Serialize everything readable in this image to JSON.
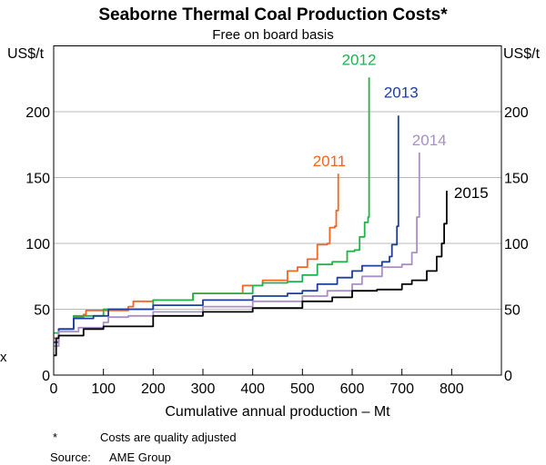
{
  "chart_data": {
    "type": "line",
    "title": "Seaborne Thermal Coal Production Costs*",
    "subtitle": "Free on board basis",
    "xlabel": "Cumulative annual production – Mt",
    "ylabel_left": "US$/t",
    "ylabel_right": "US$/t",
    "axis_break_mark": "x",
    "xlim": [
      0,
      900
    ],
    "ylim": [
      0,
      250
    ],
    "xticks": [
      0,
      100,
      200,
      300,
      400,
      500,
      600,
      700,
      800
    ],
    "yticks": [
      0,
      50,
      100,
      150,
      200
    ],
    "grid": true,
    "series": [
      {
        "name": "2011",
        "color": "#f26522",
        "points": [
          [
            0,
            28
          ],
          [
            10,
            35
          ],
          [
            40,
            44
          ],
          [
            60,
            46
          ],
          [
            65,
            49
          ],
          [
            100,
            49
          ],
          [
            150,
            52
          ],
          [
            160,
            56
          ],
          [
            200,
            57
          ],
          [
            280,
            62
          ],
          [
            380,
            68
          ],
          [
            420,
            72
          ],
          [
            470,
            79
          ],
          [
            490,
            82
          ],
          [
            510,
            88
          ],
          [
            530,
            99
          ],
          [
            550,
            100
          ],
          [
            555,
            112
          ],
          [
            565,
            113
          ],
          [
            568,
            125
          ],
          [
            572,
            153
          ]
        ]
      },
      {
        "name": "2012",
        "color": "#22b24c",
        "points": [
          [
            0,
            32
          ],
          [
            10,
            35
          ],
          [
            40,
            45
          ],
          [
            80,
            45
          ],
          [
            100,
            50
          ],
          [
            200,
            57
          ],
          [
            280,
            62
          ],
          [
            400,
            68
          ],
          [
            420,
            70
          ],
          [
            470,
            71
          ],
          [
            500,
            76
          ],
          [
            530,
            84
          ],
          [
            560,
            86
          ],
          [
            590,
            94
          ],
          [
            605,
            95
          ],
          [
            615,
            105
          ],
          [
            625,
            116
          ],
          [
            632,
            120
          ],
          [
            634,
            226
          ]
        ]
      },
      {
        "name": "2013",
        "color": "#1f3e9c",
        "points": [
          [
            0,
            25
          ],
          [
            10,
            35
          ],
          [
            40,
            43
          ],
          [
            80,
            45
          ],
          [
            110,
            50
          ],
          [
            200,
            53
          ],
          [
            300,
            57
          ],
          [
            400,
            60
          ],
          [
            470,
            62
          ],
          [
            500,
            64
          ],
          [
            530,
            69
          ],
          [
            570,
            74
          ],
          [
            600,
            79
          ],
          [
            620,
            83
          ],
          [
            660,
            86
          ],
          [
            675,
            90
          ],
          [
            680,
            99
          ],
          [
            690,
            113
          ],
          [
            693,
            197
          ]
        ]
      },
      {
        "name": "2014",
        "color": "#a98fc5",
        "points": [
          [
            0,
            22
          ],
          [
            10,
            33
          ],
          [
            50,
            36
          ],
          [
            100,
            40
          ],
          [
            110,
            44
          ],
          [
            150,
            45
          ],
          [
            200,
            48
          ],
          [
            300,
            52
          ],
          [
            400,
            56
          ],
          [
            500,
            60
          ],
          [
            550,
            64
          ],
          [
            600,
            69
          ],
          [
            620,
            75
          ],
          [
            660,
            82
          ],
          [
            700,
            84
          ],
          [
            720,
            93
          ],
          [
            730,
            120
          ],
          [
            735,
            169
          ]
        ]
      },
      {
        "name": "2015",
        "color": "#000000",
        "points": [
          [
            0,
            15
          ],
          [
            5,
            28
          ],
          [
            10,
            30
          ],
          [
            60,
            35
          ],
          [
            100,
            37
          ],
          [
            200,
            45
          ],
          [
            300,
            48
          ],
          [
            400,
            51
          ],
          [
            500,
            56
          ],
          [
            560,
            59
          ],
          [
            600,
            64
          ],
          [
            650,
            65
          ],
          [
            700,
            69
          ],
          [
            720,
            72
          ],
          [
            750,
            79
          ],
          [
            770,
            90
          ],
          [
            780,
            100
          ],
          [
            785,
            115
          ],
          [
            790,
            140
          ]
        ]
      }
    ]
  },
  "footnotes": {
    "note_marker": "*",
    "note_text": "Costs are quality adjusted",
    "source_label": "Source:",
    "source_text": "AME Group"
  }
}
